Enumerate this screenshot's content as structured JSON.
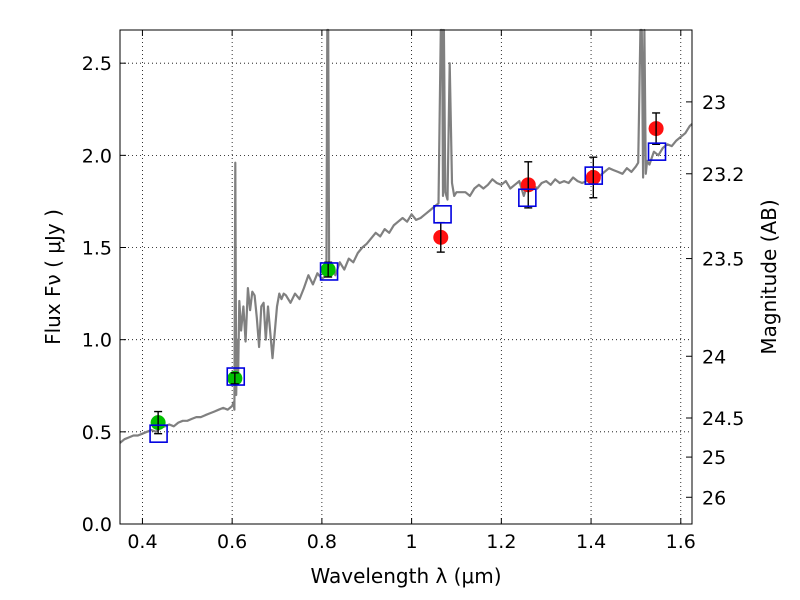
{
  "chart_data": {
    "type": "scatter",
    "xlabel": "Wavelength  λ (μm)",
    "ylabel": "Flux  Fν  ( μJy )",
    "y2label": "Magnitude (AB)",
    "xlim": [
      0.35,
      1.625
    ],
    "ylim": [
      0.0,
      2.68
    ],
    "x_ticks": [
      0.4,
      0.6,
      0.8,
      1.0,
      1.2,
      1.4,
      1.6
    ],
    "x_tick_labels": [
      "0.4",
      "0.6",
      "0.8",
      "1",
      "1.2",
      "1.4",
      "1.6"
    ],
    "y_ticks": [
      0.0,
      0.5,
      1.0,
      1.5,
      2.0,
      2.5
    ],
    "y_tick_labels": [
      "0.0",
      "0.5",
      "1.0",
      "1.5",
      "2.0",
      "2.5"
    ],
    "mag_ticks": [
      {
        "label": "23",
        "flux": 2.29
      },
      {
        "label": "23.2",
        "flux": 1.9
      },
      {
        "label": "23.5",
        "flux": 1.44
      },
      {
        "label": "24",
        "flux": 0.91
      },
      {
        "label": "24.5",
        "flux": 0.575
      },
      {
        "label": "25",
        "flux": 0.363
      },
      {
        "label": "26",
        "flux": 0.145
      }
    ],
    "grid": true,
    "model_spectrum": {
      "color": "#808080",
      "x": [
        0.35,
        0.36,
        0.37,
        0.38,
        0.39,
        0.4,
        0.41,
        0.42,
        0.43,
        0.44,
        0.45,
        0.46,
        0.47,
        0.48,
        0.49,
        0.5,
        0.51,
        0.52,
        0.53,
        0.54,
        0.55,
        0.56,
        0.57,
        0.58,
        0.59,
        0.595,
        0.6,
        0.603,
        0.605,
        0.607,
        0.609,
        0.611,
        0.613,
        0.616,
        0.62,
        0.625,
        0.63,
        0.635,
        0.64,
        0.645,
        0.65,
        0.655,
        0.66,
        0.665,
        0.67,
        0.675,
        0.68,
        0.69,
        0.7,
        0.705,
        0.71,
        0.715,
        0.72,
        0.73,
        0.74,
        0.75,
        0.76,
        0.77,
        0.78,
        0.79,
        0.8,
        0.805,
        0.81,
        0.812,
        0.814,
        0.816,
        0.818,
        0.82,
        0.825,
        0.83,
        0.84,
        0.85,
        0.86,
        0.87,
        0.88,
        0.89,
        0.9,
        0.91,
        0.92,
        0.93,
        0.94,
        0.95,
        0.96,
        0.97,
        0.98,
        0.99,
        1.0,
        1.01,
        1.02,
        1.03,
        1.04,
        1.05,
        1.055,
        1.06,
        1.065,
        1.068,
        1.07,
        1.072,
        1.075,
        1.08,
        1.085,
        1.09,
        1.095,
        1.1,
        1.11,
        1.12,
        1.13,
        1.14,
        1.15,
        1.16,
        1.17,
        1.18,
        1.19,
        1.2,
        1.21,
        1.22,
        1.23,
        1.24,
        1.25,
        1.26,
        1.27,
        1.28,
        1.29,
        1.3,
        1.31,
        1.32,
        1.33,
        1.34,
        1.35,
        1.36,
        1.37,
        1.38,
        1.39,
        1.4,
        1.41,
        1.42,
        1.43,
        1.44,
        1.45,
        1.46,
        1.47,
        1.48,
        1.49,
        1.5,
        1.505,
        1.51,
        1.513,
        1.516,
        1.519,
        1.522,
        1.525,
        1.53,
        1.54,
        1.55,
        1.56,
        1.57,
        1.58,
        1.59,
        1.6,
        1.61,
        1.62,
        1.625
      ],
      "y": [
        0.44,
        0.46,
        0.47,
        0.48,
        0.48,
        0.49,
        0.5,
        0.51,
        0.5,
        0.52,
        0.53,
        0.54,
        0.53,
        0.55,
        0.56,
        0.56,
        0.57,
        0.58,
        0.58,
        0.59,
        0.6,
        0.61,
        0.62,
        0.63,
        0.62,
        0.63,
        0.64,
        0.66,
        0.62,
        1.96,
        0.7,
        1.0,
        0.76,
        1.21,
        1.05,
        1.18,
        0.99,
        1.28,
        1.16,
        1.26,
        1.24,
        1.12,
        0.96,
        1.18,
        1.2,
        1.0,
        1.18,
        0.9,
        1.18,
        1.25,
        1.22,
        1.25,
        1.24,
        1.2,
        1.25,
        1.22,
        1.28,
        1.35,
        1.3,
        1.36,
        1.33,
        1.34,
        1.36,
        2.68,
        2.68,
        1.4,
        1.4,
        1.36,
        1.38,
        1.35,
        1.42,
        1.38,
        1.44,
        1.42,
        1.47,
        1.5,
        1.52,
        1.55,
        1.58,
        1.56,
        1.6,
        1.58,
        1.62,
        1.64,
        1.66,
        1.64,
        1.68,
        1.65,
        1.66,
        1.68,
        1.7,
        1.72,
        1.73,
        1.74,
        2.68,
        2.68,
        1.78,
        2.68,
        1.8,
        1.76,
        2.5,
        1.85,
        1.78,
        1.8,
        1.8,
        1.8,
        1.78,
        1.82,
        1.84,
        1.82,
        1.84,
        1.87,
        1.85,
        1.84,
        1.86,
        1.82,
        1.84,
        1.86,
        1.78,
        1.86,
        1.84,
        1.82,
        1.85,
        1.86,
        1.84,
        1.87,
        1.85,
        1.86,
        1.85,
        1.88,
        1.86,
        1.85,
        1.86,
        1.88,
        1.9,
        1.89,
        1.91,
        1.93,
        1.92,
        1.91,
        1.9,
        1.93,
        1.91,
        1.94,
        1.96,
        2.68,
        2.68,
        1.88,
        2.68,
        1.9,
        1.97,
        1.95,
        2.02,
        2.0,
        2.04,
        2.06,
        2.05,
        2.08,
        2.1,
        2.12,
        2.16,
        2.17
      ]
    },
    "series": [
      {
        "marker": "circle",
        "color": "#00c000",
        "points": [
          {
            "x": 0.435,
            "y": 0.55,
            "yerr": 0.06
          },
          {
            "x": 0.606,
            "y": 0.79,
            "yerr": 0.03
          },
          {
            "x": 0.814,
            "y": 1.38,
            "yerr": 0.04
          }
        ]
      },
      {
        "marker": "circle",
        "color": "#ff1010",
        "points": [
          {
            "x": 1.065,
            "y": 1.555,
            "yerr": 0.08
          },
          {
            "x": 1.26,
            "y": 1.84,
            "yerr": 0.125
          },
          {
            "x": 1.405,
            "y": 1.88,
            "yerr": 0.11
          },
          {
            "x": 1.545,
            "y": 2.145,
            "yerr": 0.085
          }
        ]
      },
      {
        "marker": "square-open",
        "color": "#0000e0",
        "points": [
          {
            "x": 0.436,
            "y": 0.49
          },
          {
            "x": 0.608,
            "y": 0.8
          },
          {
            "x": 0.816,
            "y": 1.37
          },
          {
            "x": 1.069,
            "y": 1.68
          },
          {
            "x": 1.258,
            "y": 1.77
          },
          {
            "x": 1.406,
            "y": 1.89
          },
          {
            "x": 1.547,
            "y": 2.02
          }
        ]
      }
    ]
  }
}
